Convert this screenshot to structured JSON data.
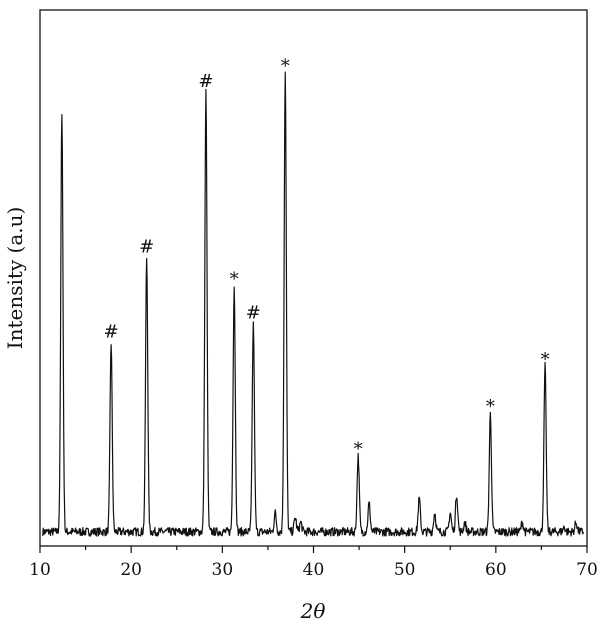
{
  "chart_data": {
    "type": "line",
    "title": "",
    "xlabel": "2θ",
    "ylabel": "Intensity (a.u)",
    "xlim": [
      10,
      70
    ],
    "ylim": [
      0,
      1
    ],
    "x_ticks": [
      10,
      20,
      30,
      40,
      50,
      60,
      70
    ],
    "grid": false,
    "legend": "none",
    "baseline": 0.03,
    "peaks": [
      {
        "x": 12.4,
        "y": 0.92,
        "marker": ""
      },
      {
        "x": 17.8,
        "y": 0.43,
        "marker": "#"
      },
      {
        "x": 21.7,
        "y": 0.61,
        "marker": "#"
      },
      {
        "x": 28.2,
        "y": 0.96,
        "marker": "#"
      },
      {
        "x": 31.3,
        "y": 0.55,
        "marker": "*"
      },
      {
        "x": 33.4,
        "y": 0.47,
        "marker": "#"
      },
      {
        "x": 35.8,
        "y": 0.07,
        "marker": ""
      },
      {
        "x": 36.9,
        "y": 1.0,
        "marker": "*"
      },
      {
        "x": 38.0,
        "y": 0.06,
        "marker": ""
      },
      {
        "x": 38.6,
        "y": 0.05,
        "marker": ""
      },
      {
        "x": 44.9,
        "y": 0.19,
        "marker": "*"
      },
      {
        "x": 46.1,
        "y": 0.09,
        "marker": ""
      },
      {
        "x": 51.6,
        "y": 0.1,
        "marker": ""
      },
      {
        "x": 53.3,
        "y": 0.07,
        "marker": ""
      },
      {
        "x": 55.0,
        "y": 0.07,
        "marker": ""
      },
      {
        "x": 55.7,
        "y": 0.11,
        "marker": ""
      },
      {
        "x": 56.6,
        "y": 0.05,
        "marker": ""
      },
      {
        "x": 59.4,
        "y": 0.28,
        "marker": "*"
      },
      {
        "x": 62.9,
        "y": 0.05,
        "marker": ""
      },
      {
        "x": 65.4,
        "y": 0.38,
        "marker": "*"
      },
      {
        "x": 67.5,
        "y": 0.04,
        "marker": ""
      },
      {
        "x": 68.8,
        "y": 0.05,
        "marker": ""
      }
    ]
  }
}
